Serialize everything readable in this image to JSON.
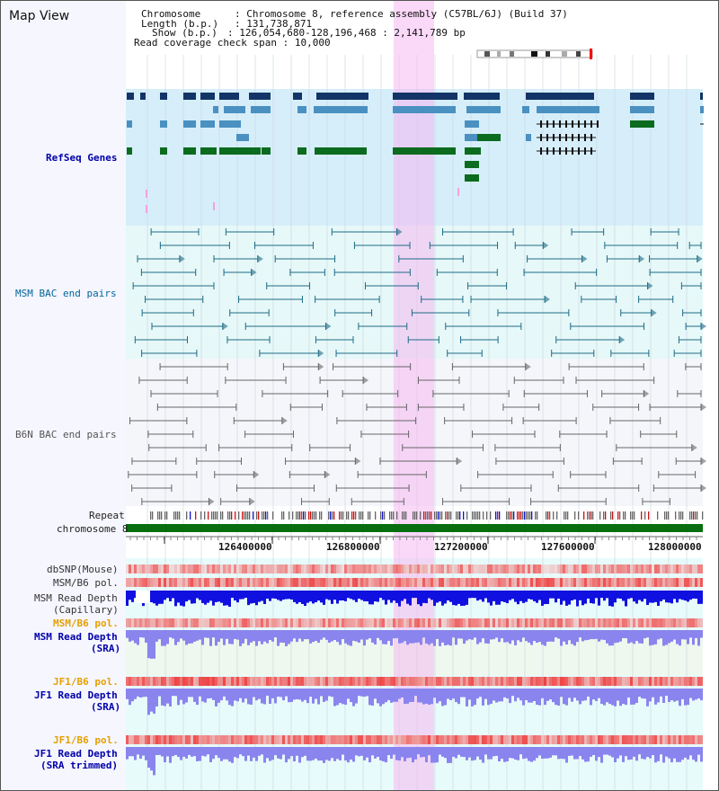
{
  "view": {
    "title": "Map View",
    "chromosome": "Chromosome 8, reference assembly (C57BL/6J) (Build 37)",
    "length_bp": "131,738,871",
    "show_bp": "126,054,680-128,196,468 : 2,141,789 bp",
    "coverage_span": "10,000"
  },
  "info_labels": {
    "chromosome": "Chromosome",
    "length": "Length (b.p.)",
    "show": "Show (b.p.)",
    "coverage": "Read coverage check span"
  },
  "tracks": [
    {
      "label": "RefSeq Genes",
      "color": "#0000aa"
    },
    {
      "label": "MSM BAC end pairs",
      "color": "#006699"
    },
    {
      "label": "B6N BAC end pairs",
      "color": "#555555"
    },
    {
      "label": "Repeat",
      "color": "#222222"
    },
    {
      "label": "chromosome 8",
      "color": "#222222"
    },
    {
      "label": "dbSNP(Mouse)",
      "color": "#333333"
    },
    {
      "label": "MSM/B6 pol.",
      "color": "#333333"
    },
    {
      "label": "MSM Read Depth",
      "color": "#333333"
    },
    {
      "label": "(Capillary)",
      "color": "#333333"
    },
    {
      "label": "MSM/B6 pol.",
      "color": "#e6a000"
    },
    {
      "label": "MSM Read Depth",
      "color": "#0000aa"
    },
    {
      "label": "(SRA)",
      "color": "#0000aa"
    },
    {
      "label": "JF1/B6 pol.",
      "color": "#e6a000"
    },
    {
      "label": "JF1 Read Depth",
      "color": "#0000aa"
    },
    {
      "label": "(SRA)",
      "color": "#0000aa"
    },
    {
      "label": "JF1/B6 pol.",
      "color": "#e6a000"
    },
    {
      "label": "JF1 Read Depth",
      "color": "#0000aa"
    },
    {
      "label": "(SRA trimmed)",
      "color": "#0000aa"
    }
  ],
  "axis": {
    "ticks": [
      "126400000",
      "126800000",
      "127200000",
      "127600000",
      "128000000"
    ]
  },
  "highlight": {
    "color": "#f5b8f0"
  },
  "colors": {
    "refseq_bg": "#d6eefa",
    "msm_bg": "#e6f8f8",
    "b6n_bg": "#f4f6fa",
    "lower_bg": "#e8fbfb",
    "gene_navy": "#123466",
    "gene_blue": "#4a90c0",
    "gene_green": "#0b6b1e",
    "msm_pair": "#1e6b86",
    "b6n_pair": "#666666",
    "chrom_green": "#086e10",
    "depth_blue": "#1010e0",
    "depth_violet": "#8a84ee",
    "pol_red": "#ee2a2a"
  }
}
